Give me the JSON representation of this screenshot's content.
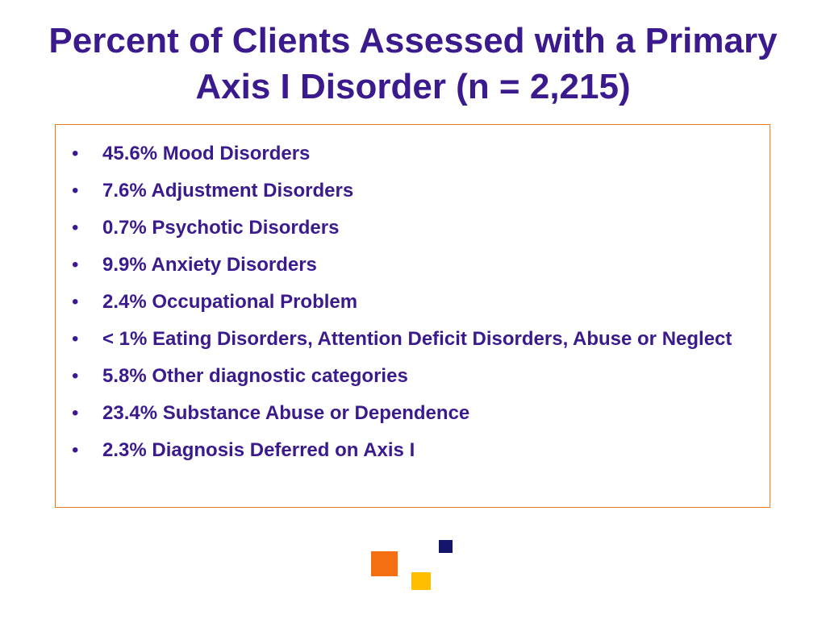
{
  "slide": {
    "title": "Percent of Clients Assessed with a Primary Axis I Disorder (n = 2,215)",
    "bullet_glyph": "•",
    "items": [
      "45.6% Mood Disorders",
      "7.6% Adjustment Disorders",
      "0.7% Psychotic Disorders",
      "9.9% Anxiety Disorders",
      "2.4% Occupational Problem",
      "< 1% Eating Disorders, Attention Deficit Disorders, Abuse or Neglect",
      "5.8% Other diagnostic categories",
      "23.4% Substance Abuse or Dependence",
      "2.3% Diagnosis Deferred on Axis I"
    ]
  },
  "colors": {
    "title_text": "#3a1a8c",
    "body_text": "#3a1a8c",
    "box_border": "#f07a1a",
    "deco_orange": "#f36f12",
    "deco_yellow": "#ffbf00",
    "deco_navy": "#14146b"
  }
}
